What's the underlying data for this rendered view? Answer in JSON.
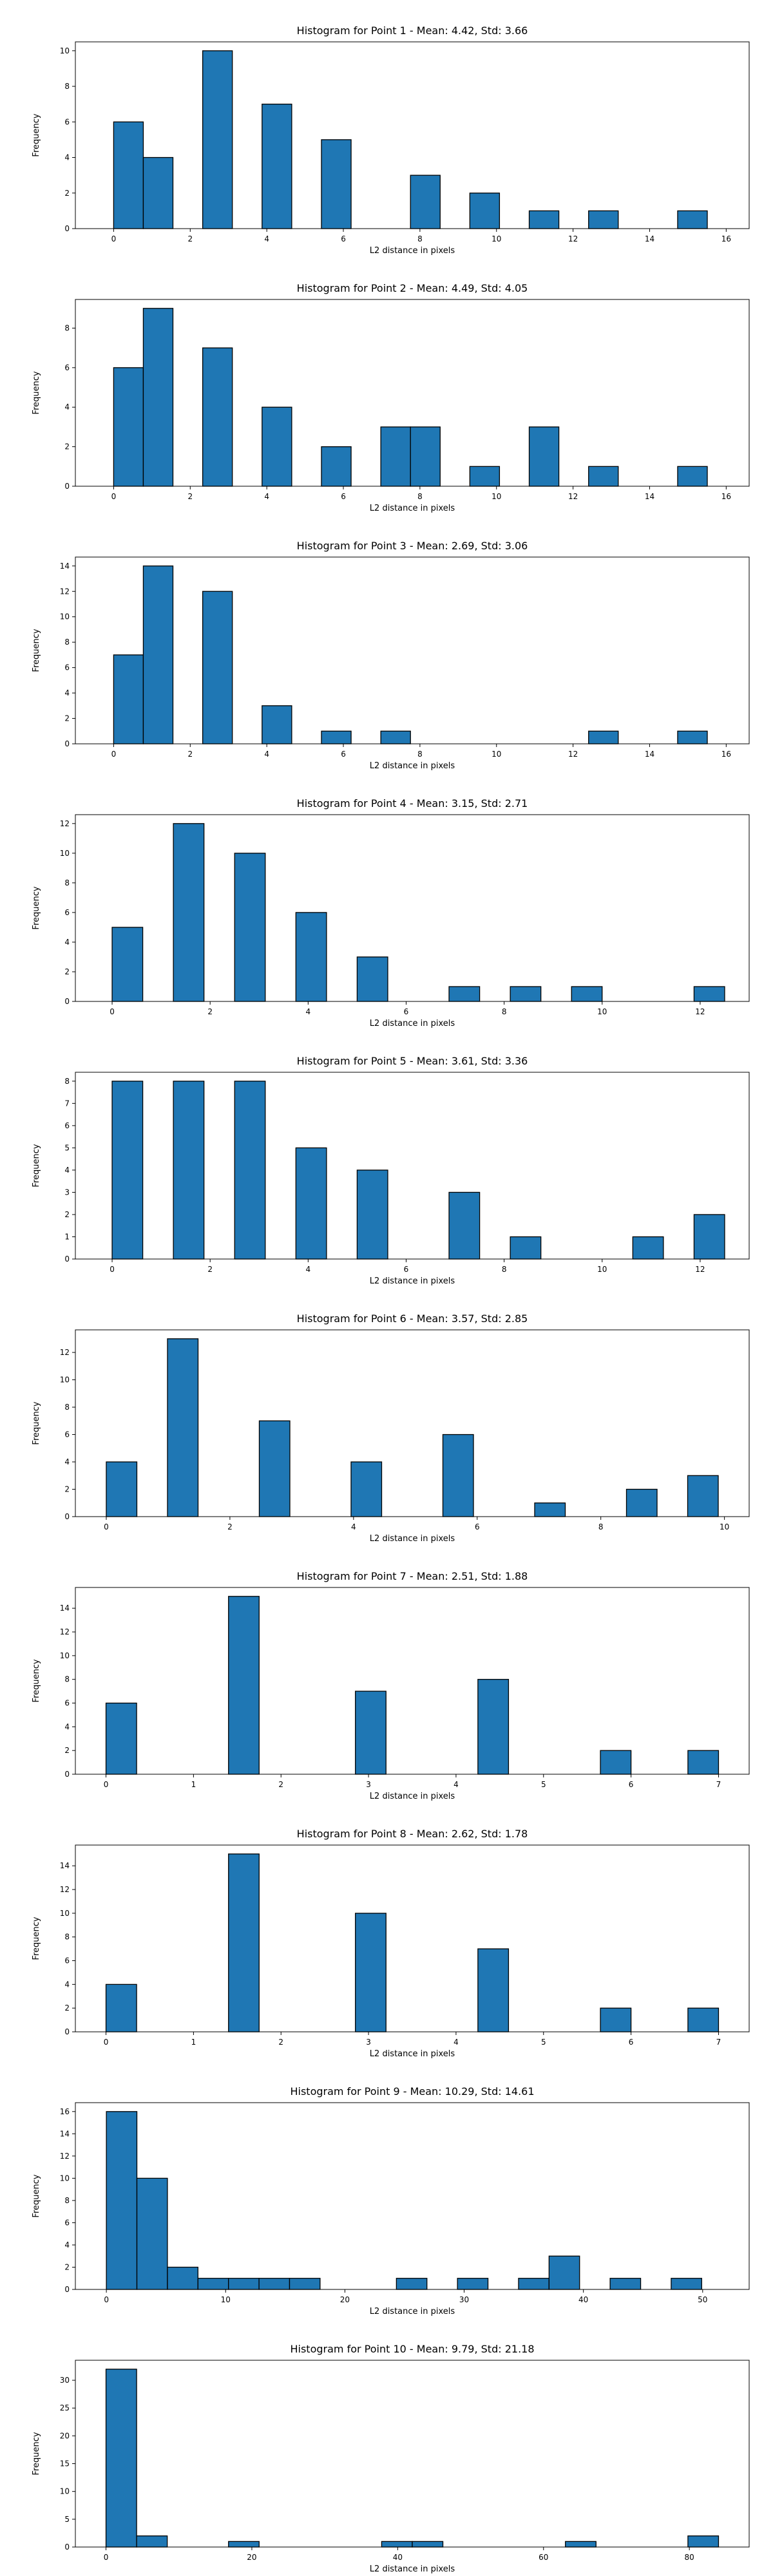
{
  "chart_data": [
    {
      "type": "bar",
      "title": "Histogram for Point 1 - Mean: 4.42, Std: 3.66",
      "xlabel": "L2 distance in pixels",
      "ylabel": "Frequency",
      "xlim": [
        -1.0,
        16.6
      ],
      "ylim": [
        0,
        10.5
      ],
      "xticks": [
        0,
        2,
        4,
        6,
        8,
        10,
        12,
        14,
        16
      ],
      "yticks": [
        0,
        2,
        4,
        6,
        8,
        10
      ],
      "bin_width": 0.775,
      "x": [
        0.387,
        1.162,
        2.713,
        4.264,
        5.815,
        8.141,
        9.691,
        11.242,
        12.793,
        15.119
      ],
      "values": [
        6,
        4,
        10,
        7,
        5,
        3,
        2,
        1,
        1,
        1
      ],
      "bar_color": "#1f77b4",
      "edge_color": "#000000"
    },
    {
      "type": "bar",
      "title": "Histogram for Point 2 - Mean: 4.49, Std: 4.05",
      "xlabel": "L2 distance in pixels",
      "ylabel": "Frequency",
      "xlim": [
        -1.0,
        16.6
      ],
      "ylim": [
        0,
        9.45
      ],
      "xticks": [
        0,
        2,
        4,
        6,
        8,
        10,
        12,
        14,
        16
      ],
      "yticks": [
        0,
        2,
        4,
        6,
        8
      ],
      "bin_width": 0.775,
      "x": [
        0.387,
        1.162,
        2.713,
        4.264,
        5.815,
        7.366,
        8.141,
        9.691,
        11.242,
        12.793,
        15.119
      ],
      "values": [
        6,
        9,
        7,
        4,
        2,
        3,
        3,
        1,
        3,
        1,
        1
      ],
      "bar_color": "#1f77b4",
      "edge_color": "#000000"
    },
    {
      "type": "bar",
      "title": "Histogram for Point 3 - Mean: 2.69, Std: 3.06",
      "xlabel": "L2 distance in pixels",
      "ylabel": "Frequency",
      "xlim": [
        -1.0,
        16.6
      ],
      "ylim": [
        0,
        14.7
      ],
      "xticks": [
        0,
        2,
        4,
        6,
        8,
        10,
        12,
        14,
        16
      ],
      "yticks": [
        0,
        2,
        4,
        6,
        8,
        10,
        12,
        14
      ],
      "bin_width": 0.775,
      "x": [
        0.387,
        1.162,
        2.713,
        4.264,
        5.815,
        7.366,
        12.793,
        15.119
      ],
      "values": [
        7,
        14,
        12,
        3,
        1,
        1,
        1,
        1
      ],
      "bar_color": "#1f77b4",
      "edge_color": "#000000"
    },
    {
      "type": "bar",
      "title": "Histogram for Point 4 - Mean: 3.15, Std: 2.71",
      "xlabel": "L2 distance in pixels",
      "ylabel": "Frequency",
      "xlim": [
        -0.75,
        13.0
      ],
      "ylim": [
        0,
        12.6
      ],
      "xticks": [
        0,
        2,
        4,
        6,
        8,
        10,
        12
      ],
      "yticks": [
        0,
        2,
        4,
        6,
        8,
        10,
        12
      ],
      "bin_width": 0.625,
      "x": [
        0.3125,
        1.5625,
        2.8125,
        4.0625,
        5.3125,
        7.1875,
        8.4375,
        9.6875,
        12.1875
      ],
      "values": [
        5,
        12,
        10,
        6,
        3,
        1,
        1,
        1,
        1
      ],
      "bar_color": "#1f77b4",
      "edge_color": "#000000"
    },
    {
      "type": "bar",
      "title": "Histogram for Point 5 - Mean: 3.61, Std: 3.36",
      "xlabel": "L2 distance in pixels",
      "ylabel": "Frequency",
      "xlim": [
        -0.75,
        13.0
      ],
      "ylim": [
        0,
        8.4
      ],
      "xticks": [
        0,
        2,
        4,
        6,
        8,
        10,
        12
      ],
      "yticks": [
        0,
        1,
        2,
        3,
        4,
        5,
        6,
        7,
        8
      ],
      "bin_width": 0.625,
      "x": [
        0.3125,
        1.5625,
        2.8125,
        4.0625,
        5.3125,
        7.1875,
        8.4375,
        10.9375,
        12.1875
      ],
      "values": [
        8,
        8,
        8,
        5,
        4,
        3,
        1,
        1,
        2
      ],
      "bar_color": "#1f77b4",
      "edge_color": "#000000"
    },
    {
      "type": "bar",
      "title": "Histogram for Point 6 - Mean: 3.57, Std: 2.85",
      "xlabel": "L2 distance in pixels",
      "ylabel": "Frequency",
      "xlim": [
        -0.5,
        10.4
      ],
      "ylim": [
        0,
        13.65
      ],
      "xticks": [
        0,
        2,
        4,
        6,
        8,
        10
      ],
      "yticks": [
        0,
        2,
        4,
        6,
        8,
        10,
        12
      ],
      "bin_width": 0.495,
      "x": [
        0.2475,
        1.2375,
        2.7225,
        4.2075,
        5.6925,
        7.1775,
        8.6625,
        9.6525
      ],
      "values": [
        4,
        13,
        7,
        4,
        6,
        1,
        2,
        3
      ],
      "bar_color": "#1f77b4",
      "edge_color": "#000000"
    },
    {
      "type": "bar",
      "title": "Histogram for Point 7 - Mean: 2.51, Std: 1.88",
      "xlabel": "L2 distance in pixels",
      "ylabel": "Frequency",
      "xlim": [
        -0.35,
        7.35
      ],
      "ylim": [
        0,
        15.75
      ],
      "xticks": [
        0,
        1,
        2,
        3,
        4,
        5,
        6,
        7
      ],
      "yticks": [
        0,
        2,
        4,
        6,
        8,
        10,
        12,
        14
      ],
      "bin_width": 0.35,
      "x": [
        0.175,
        1.575,
        3.025,
        4.425,
        5.825,
        6.825
      ],
      "values": [
        6,
        15,
        7,
        8,
        2,
        2
      ],
      "bar_color": "#1f77b4",
      "edge_color": "#000000"
    },
    {
      "type": "bar",
      "title": "Histogram for Point 8 - Mean: 2.62, Std: 1.78",
      "xlabel": "L2 distance in pixels",
      "ylabel": "Frequency",
      "xlim": [
        -0.35,
        7.35
      ],
      "ylim": [
        0,
        15.75
      ],
      "xticks": [
        0,
        1,
        2,
        3,
        4,
        5,
        6,
        7
      ],
      "yticks": [
        0,
        2,
        4,
        6,
        8,
        10,
        12,
        14
      ],
      "bin_width": 0.35,
      "x": [
        0.175,
        1.575,
        3.025,
        4.425,
        5.825,
        6.825
      ],
      "values": [
        4,
        15,
        10,
        7,
        2,
        2
      ],
      "bar_color": "#1f77b4",
      "edge_color": "#000000"
    },
    {
      "type": "bar",
      "title": "Histogram for Point 9 - Mean: 10.29, Std: 14.61",
      "xlabel": "L2 distance in pixels",
      "ylabel": "Frequency",
      "xlim": [
        -2.6,
        53.9
      ],
      "ylim": [
        0,
        16.8
      ],
      "xticks": [
        0,
        10,
        20,
        30,
        40,
        50
      ],
      "yticks": [
        0,
        2,
        4,
        6,
        8,
        10,
        12,
        14,
        16
      ],
      "bin_width": 2.56,
      "x": [
        1.28,
        3.84,
        6.4,
        8.96,
        11.52,
        14.08,
        16.64,
        25.6,
        30.72,
        35.84,
        38.4,
        43.52,
        48.64
      ],
      "values": [
        16,
        10,
        2,
        1,
        1,
        1,
        1,
        1,
        1,
        1,
        3,
        1,
        1
      ],
      "bar_color": "#1f77b4",
      "edge_color": "#000000"
    },
    {
      "type": "bar",
      "title": "Histogram for Point 10 - Mean: 9.79, Std: 21.18",
      "xlabel": "L2 distance in pixels",
      "ylabel": "Frequency",
      "xlim": [
        -4.2,
        88.2
      ],
      "ylim": [
        0,
        33.6
      ],
      "xticks": [
        0,
        20,
        40,
        60,
        80
      ],
      "yticks": [
        0,
        5,
        10,
        15,
        20,
        25,
        30
      ],
      "bin_width": 4.2,
      "x": [
        2.1,
        6.3,
        18.9,
        39.9,
        44.1,
        65.1,
        81.9
      ],
      "values": [
        32,
        2,
        1,
        1,
        1,
        1,
        2
      ],
      "bar_color": "#1f77b4",
      "edge_color": "#000000"
    }
  ]
}
